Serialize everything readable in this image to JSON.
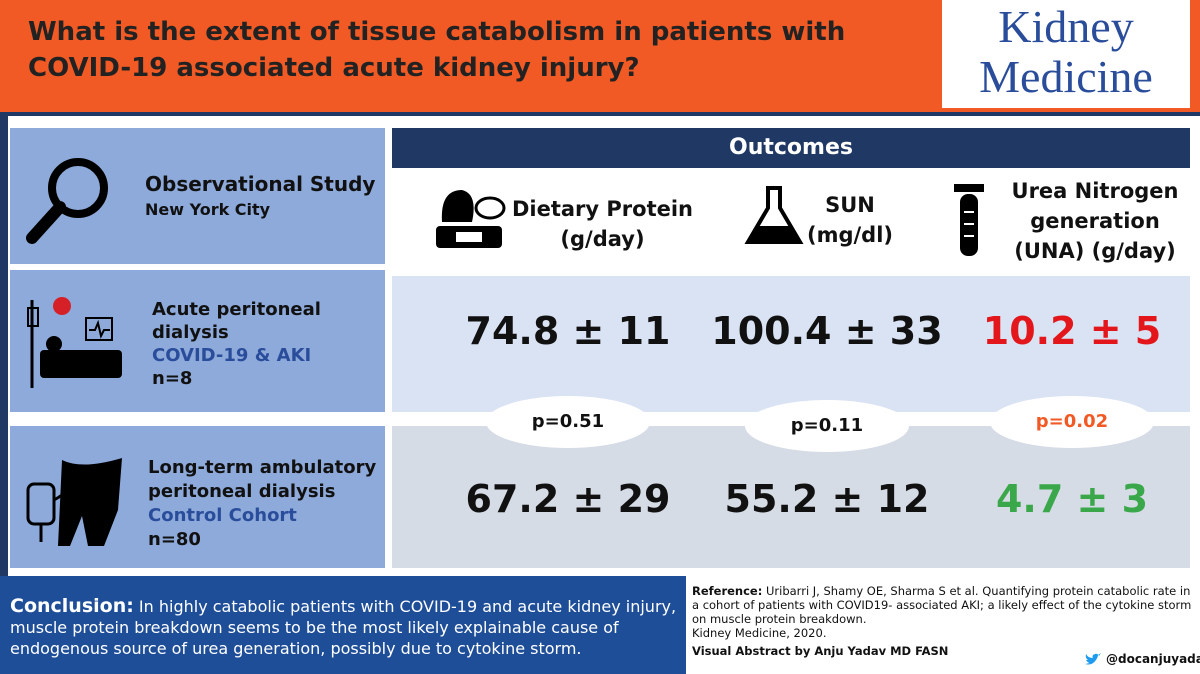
{
  "header": {
    "title": "What is the extent of tissue catabolism in patients with COVID-19 associated acute kidney injury?",
    "logo": [
      "Kidney",
      "Medicine"
    ]
  },
  "study": {
    "title": "Observational Study",
    "location": "New York City"
  },
  "groups": [
    {
      "lines": [
        "Acute peritoneal",
        "dialysis"
      ],
      "cohort": "COVID-19 & AKI",
      "n": "n=8"
    },
    {
      "lines": [
        "Long-term ambulatory",
        "peritoneal dialysis"
      ],
      "cohort": "Control Cohort",
      "n": "n=80"
    }
  ],
  "outcomes": {
    "title": "Outcomes",
    "columns": [
      {
        "lines": [
          "Dietary Protein",
          "(g/day)"
        ]
      },
      {
        "lines": [
          "SUN",
          "(mg/dl)"
        ]
      },
      {
        "lines": [
          "Urea Nitrogen",
          "generation",
          "(UNA) (g/day)"
        ]
      }
    ]
  },
  "results": [
    [
      "74.8 ± 11",
      "100.4 ± 33",
      "10.2 ± 5"
    ],
    [
      "67.2 ± 29",
      "55.2 ± 12",
      "4.7 ± 3"
    ]
  ],
  "p_values": [
    "p=0.51",
    "p=0.11",
    "p=0.02"
  ],
  "conclusion": {
    "label": "Conclusion:",
    "text": "In highly catabolic patients with COVID-19 and acute kidney injury, muscle protein breakdown seems to be the most likely explainable cause of endogenous source  of urea generation, possibly due to cytokine storm."
  },
  "reference": {
    "label": "Reference:",
    "text": "Uribarri J, Shamy OE, Sharma S et al. Quantifying protein catabolic rate in a cohort of patients with COVID19- associated AKI; a likely effect of the cytokine storm on muscle protein breakdown.",
    "journal": "Kidney Medicine, 2020.",
    "credit": "Visual Abstract by Anju Yadav MD FASN",
    "handle": "@docanjuyadav"
  }
}
